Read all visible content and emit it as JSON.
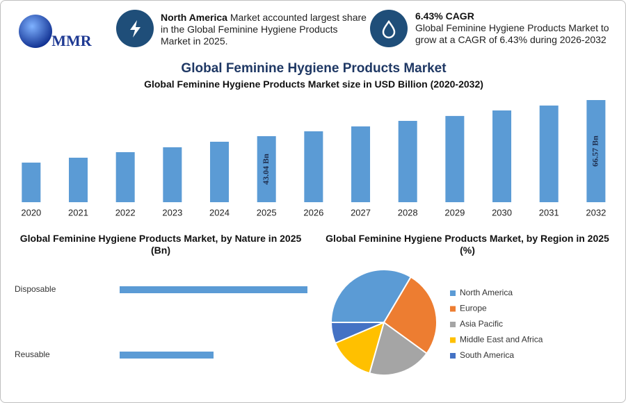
{
  "header": {
    "logo": "MMR",
    "highlights": [
      {
        "title": "North America",
        "text": "Market accounted largest share in the Global Feminine Hygiene Products Market in 2025."
      },
      {
        "title": "6.43% CAGR",
        "text": "Global Feminine Hygiene Products Market to grow at a CAGR of 6.43% during 2026-2032"
      }
    ]
  },
  "title": "Global Feminine Hygiene Products Market",
  "chart_data": [
    {
      "type": "bar",
      "title": "Global Feminine Hygiene Products Market size in USD Billion (2020-2032)",
      "categories": [
        "2020",
        "2021",
        "2022",
        "2023",
        "2024",
        "2025",
        "2026",
        "2027",
        "2028",
        "2029",
        "2030",
        "2031",
        "2032"
      ],
      "values": [
        25.8,
        29.0,
        32.6,
        35.8,
        39.4,
        43.04,
        46.2,
        49.4,
        53.0,
        56.2,
        59.8,
        63.0,
        66.57
      ],
      "value_labels": [
        null,
        null,
        null,
        null,
        null,
        "43.04 Bn",
        null,
        null,
        null,
        null,
        null,
        null,
        "66.57 Bn"
      ],
      "color": "#5b9bd5"
    },
    {
      "type": "hbar",
      "title": "Global Feminine Hygiene Products Market, by Nature in 2025 (Bn)",
      "categories": [
        "Disposable",
        "Reusable"
      ],
      "values": [
        28.7,
        14.35
      ],
      "color": "#5b9bd5"
    },
    {
      "type": "pie",
      "title": "Global Feminine Hygiene Products Market, by Region in 2025 (%)",
      "categories": [
        "North America",
        "Europe",
        "Asia Pacific",
        "Middle East and Africa",
        "South America"
      ],
      "values": [
        33.5,
        26.5,
        19.4,
        14.2,
        6.4
      ],
      "colors": [
        "#5b9bd5",
        "#ed7d31",
        "#a5a5a5",
        "#ffc000",
        "#4472c4"
      ],
      "legend": "right"
    }
  ]
}
